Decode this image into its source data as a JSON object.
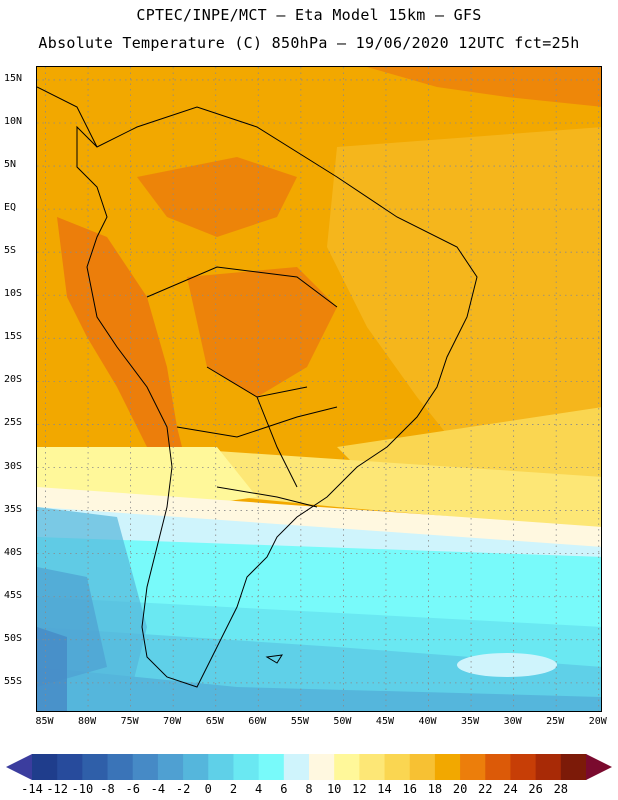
{
  "header": {
    "line1": "CPTEC/INPE/MCT –  Eta Model 15km – GFS",
    "line2": "Absolute Temperature (C) 850hPa – 19/06/2020 12UTC fct=25h"
  },
  "map": {
    "lat_labels": [
      "15N",
      "10N",
      "5N",
      "EQ",
      "5S",
      "10S",
      "15S",
      "20S",
      "25S",
      "30S",
      "35S",
      "40S",
      "45S",
      "50S",
      "55S"
    ],
    "lat_values": [
      15,
      10,
      5,
      0,
      -5,
      -10,
      -15,
      -20,
      -25,
      -30,
      -35,
      -40,
      -45,
      -50,
      -55
    ],
    "lon_labels": [
      "85W",
      "80W",
      "75W",
      "70W",
      "65W",
      "60W",
      "55W",
      "50W",
      "45W",
      "40W",
      "35W",
      "30W",
      "25W",
      "20W"
    ],
    "lon_values": [
      -85,
      -80,
      -75,
      -70,
      -65,
      -60,
      -55,
      -50,
      -45,
      -40,
      -35,
      -30,
      -25,
      -20
    ],
    "lat_range": [
      -58.5,
      16.5
    ],
    "lon_range": [
      -86,
      -19.5
    ]
  },
  "colorbar": {
    "labels": [
      "-14",
      "-12",
      "-10",
      "-8",
      "-6",
      "-4",
      "-2",
      "0",
      "2",
      "4",
      "6",
      "8",
      "10",
      "12",
      "14",
      "16",
      "18",
      "20",
      "22",
      "24",
      "26",
      "28"
    ],
    "colors": [
      "#1f3d8c",
      "#274b9c",
      "#2f5fa9",
      "#3a74b8",
      "#468ac6",
      "#4fa0d2",
      "#55b6dc",
      "#5fd0e8",
      "#6ae8f2",
      "#78fafa",
      "#cff4fc",
      "#fff8e0",
      "#fff89a",
      "#fde776",
      "#fad651",
      "#f7c133",
      "#f2a800",
      "#ec7e0b",
      "#dc5a08",
      "#c73e06",
      "#a82a06",
      "#7c1a08"
    ],
    "left_arrow": "#3b3d9e",
    "right_arrow": "#7a0a2e"
  }
}
